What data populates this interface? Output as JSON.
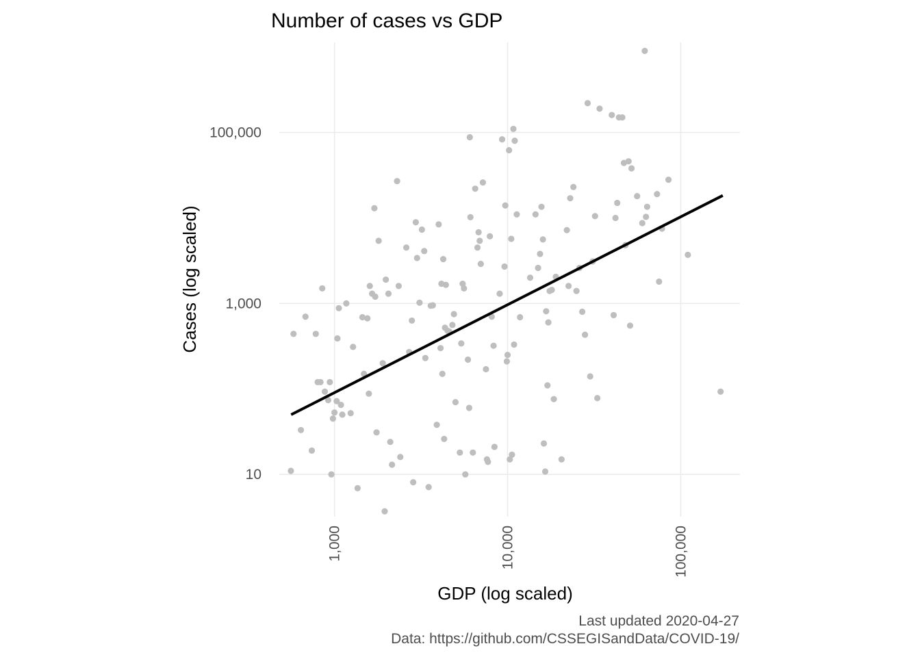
{
  "chart_data": {
    "type": "scatter",
    "title": "Number of cases vs GDP",
    "xlabel": "GDP (log scaled)",
    "ylabel": "Cases (log scaled)",
    "x_scale": "log10",
    "y_scale": "log10",
    "xlim": [
      480,
      220000
    ],
    "ylim": [
      3.2,
      1130000
    ],
    "x_ticks": [
      {
        "value": 1000,
        "label": "1,000"
      },
      {
        "value": 10000,
        "label": "10,000"
      },
      {
        "value": 100000,
        "label": "100,000"
      }
    ],
    "y_ticks": [
      {
        "value": 10,
        "label": "10"
      },
      {
        "value": 1000,
        "label": "1,000"
      },
      {
        "value": 100000,
        "label": "100,000"
      }
    ],
    "grid": true,
    "point_color": "#bebebe",
    "trend_color": "#000000",
    "trend_line": {
      "x": [
        562,
        175000
      ],
      "y": [
        50,
        18300
      ]
    },
    "points": [
      [
        560,
        11
      ],
      [
        580,
        440
      ],
      [
        640,
        33
      ],
      [
        680,
        700
      ],
      [
        740,
        19
      ],
      [
        780,
        440
      ],
      [
        800,
        120
      ],
      [
        830,
        120
      ],
      [
        850,
        1500
      ],
      [
        880,
        93
      ],
      [
        920,
        74
      ],
      [
        940,
        120
      ],
      [
        960,
        10
      ],
      [
        980,
        45
      ],
      [
        1000,
        53
      ],
      [
        1030,
        72
      ],
      [
        1040,
        390
      ],
      [
        1060,
        880
      ],
      [
        1090,
        65
      ],
      [
        1110,
        50
      ],
      [
        1170,
        1000
      ],
      [
        1240,
        52
      ],
      [
        1280,
        310
      ],
      [
        1360,
        6.9
      ],
      [
        1450,
        690
      ],
      [
        1480,
        150
      ],
      [
        1550,
        670
      ],
      [
        1580,
        88
      ],
      [
        1600,
        1600
      ],
      [
        1650,
        1300
      ],
      [
        1700,
        13000
      ],
      [
        1720,
        1200
      ],
      [
        1750,
        31
      ],
      [
        1800,
        5400
      ],
      [
        1900,
        200
      ],
      [
        1950,
        3.7
      ],
      [
        1980,
        1900
      ],
      [
        2050,
        1300
      ],
      [
        2100,
        24
      ],
      [
        2150,
        13
      ],
      [
        2300,
        27000
      ],
      [
        2350,
        1600
      ],
      [
        2400,
        16
      ],
      [
        2600,
        4500
      ],
      [
        2700,
        270
      ],
      [
        2800,
        630
      ],
      [
        2850,
        8.1
      ],
      [
        2950,
        8900
      ],
      [
        3000,
        3400
      ],
      [
        3100,
        1020
      ],
      [
        3200,
        7300
      ],
      [
        3300,
        4100
      ],
      [
        3350,
        230
      ],
      [
        3500,
        7.1
      ],
      [
        3600,
        940
      ],
      [
        3700,
        950
      ],
      [
        3900,
        38
      ],
      [
        4000,
        8400
      ],
      [
        4100,
        300
      ],
      [
        4150,
        1700
      ],
      [
        4200,
        150
      ],
      [
        4250,
        3300
      ],
      [
        4300,
        26
      ],
      [
        4350,
        520
      ],
      [
        4400,
        1650
      ],
      [
        4500,
        480
      ],
      [
        4600,
        470
      ],
      [
        4800,
        560
      ],
      [
        4900,
        750
      ],
      [
        5000,
        70
      ],
      [
        5300,
        18
      ],
      [
        5400,
        340
      ],
      [
        5500,
        1700
      ],
      [
        5600,
        1500
      ],
      [
        5700,
        10
      ],
      [
        5900,
        220
      ],
      [
        6000,
        60
      ],
      [
        6050,
        88000
      ],
      [
        6100,
        10200
      ],
      [
        6300,
        18
      ],
      [
        6500,
        22000
      ],
      [
        6700,
        4500
      ],
      [
        6800,
        6800
      ],
      [
        6900,
        5400
      ],
      [
        7000,
        2900
      ],
      [
        7200,
        26000
      ],
      [
        7500,
        170
      ],
      [
        7600,
        15
      ],
      [
        7700,
        14
      ],
      [
        7900,
        6100
      ],
      [
        8100,
        700
      ],
      [
        8300,
        320
      ],
      [
        8400,
        21
      ],
      [
        9000,
        1300
      ],
      [
        9300,
        83000
      ],
      [
        9600,
        2700
      ],
      [
        9700,
        14000
      ],
      [
        9900,
        210
      ],
      [
        10000,
        250
      ],
      [
        10200,
        62000
      ],
      [
        10300,
        15
      ],
      [
        10500,
        5700
      ],
      [
        10600,
        17
      ],
      [
        10800,
        110000
      ],
      [
        10900,
        330
      ],
      [
        11000,
        80000
      ],
      [
        11300,
        11000
      ],
      [
        11800,
        690
      ],
      [
        13500,
        2000
      ],
      [
        14500,
        11000
      ],
      [
        15000,
        2600
      ],
      [
        15400,
        3800
      ],
      [
        15700,
        13500
      ],
      [
        16000,
        5600
      ],
      [
        16200,
        23
      ],
      [
        16500,
        10.8
      ],
      [
        16700,
        810
      ],
      [
        17000,
        110
      ],
      [
        17200,
        600
      ],
      [
        17500,
        1400
      ],
      [
        18000,
        1440
      ],
      [
        18500,
        76
      ],
      [
        19000,
        2050
      ],
      [
        20500,
        15
      ],
      [
        22000,
        7200
      ],
      [
        22500,
        1600
      ],
      [
        23000,
        17000
      ],
      [
        24000,
        23000
      ],
      [
        25000,
        1400
      ],
      [
        26000,
        2600
      ],
      [
        27000,
        800
      ],
      [
        28000,
        430
      ],
      [
        29000,
        220000
      ],
      [
        30000,
        140
      ],
      [
        31000,
        3100
      ],
      [
        32000,
        10500
      ],
      [
        33000,
        78
      ],
      [
        34000,
        190000
      ],
      [
        40000,
        160000
      ],
      [
        41000,
        730
      ],
      [
        42000,
        10000
      ],
      [
        43000,
        15000
      ],
      [
        44000,
        150000
      ],
      [
        46000,
        150000
      ],
      [
        47000,
        44000
      ],
      [
        48000,
        4800
      ],
      [
        50000,
        46000
      ],
      [
        51000,
        550
      ],
      [
        52000,
        38000
      ],
      [
        56000,
        18000
      ],
      [
        60000,
        8700
      ],
      [
        62000,
        900000
      ],
      [
        63000,
        10300
      ],
      [
        64000,
        13500
      ],
      [
        73000,
        19000
      ],
      [
        75000,
        1800
      ],
      [
        78000,
        7500
      ],
      [
        85000,
        28000
      ],
      [
        110000,
        3700
      ],
      [
        170000,
        93
      ]
    ],
    "caption": {
      "updated": "Last updated 2020-04-27",
      "source": "Data: https://github.com/CSSEGISandData/COVID-19/"
    }
  }
}
